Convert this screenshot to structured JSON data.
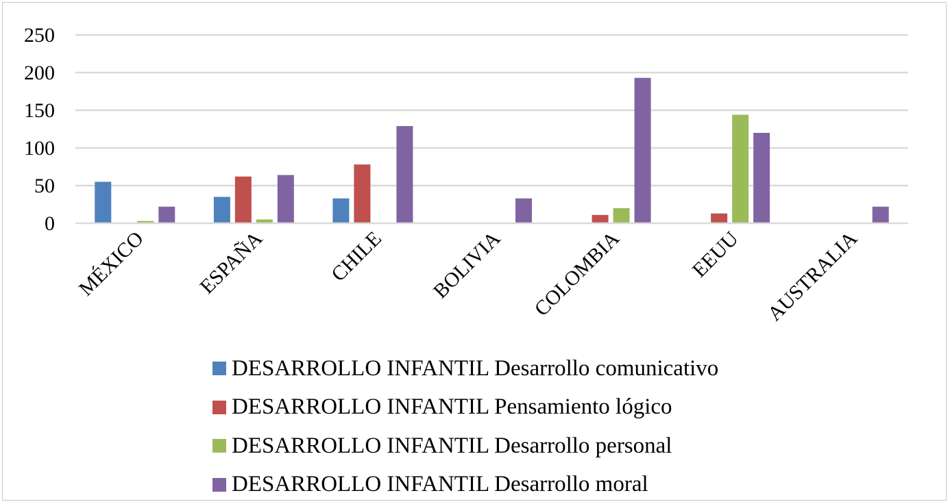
{
  "chart_data": {
    "type": "bar",
    "title": "",
    "xlabel": "",
    "ylabel": "",
    "ylim": [
      0,
      250
    ],
    "yticks": [
      0,
      50,
      100,
      150,
      200,
      250
    ],
    "grid": true,
    "legend_position": "bottom",
    "categories": [
      "MÉXICO",
      "ESPAÑA",
      "CHILE",
      "BOLIVIA",
      "COLOMBIA",
      "EEUU",
      "AUSTRALIA"
    ],
    "series": [
      {
        "name": "DESARROLLO INFANTIL Desarrollo comunicativo",
        "color": "#4f81bd",
        "values": [
          55,
          35,
          33,
          0,
          0,
          0,
          0
        ]
      },
      {
        "name": "DESARROLLO INFANTIL Pensamiento lógico",
        "color": "#c0504d",
        "values": [
          0,
          62,
          78,
          0,
          11,
          13,
          0
        ]
      },
      {
        "name": "DESARROLLO INFANTIL Desarrollo personal",
        "color": "#9bbb59",
        "values": [
          3,
          5,
          0,
          0,
          20,
          144,
          0
        ]
      },
      {
        "name": "DESARROLLO INFANTIL Desarrollo moral",
        "color": "#8064a2",
        "values": [
          22,
          64,
          129,
          33,
          193,
          120,
          22
        ]
      }
    ]
  }
}
